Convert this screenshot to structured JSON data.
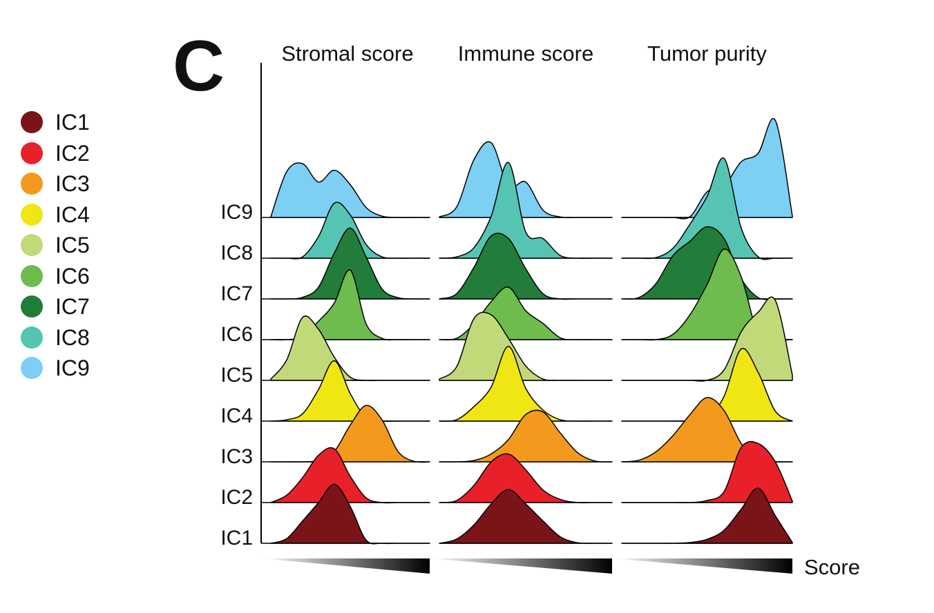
{
  "panel_label": "C",
  "chart_data": {
    "type": "area",
    "subtype": "ridgeline-density",
    "panels": [
      "Stromal score",
      "Immune score",
      "Tumor purity"
    ],
    "x_axis_label": "Score",
    "x_axis": "unlabeled gradient (low to high)",
    "y_categories": [
      "IC1",
      "IC2",
      "IC3",
      "IC4",
      "IC5",
      "IC6",
      "IC7",
      "IC8",
      "IC9"
    ],
    "x_grid": [
      0,
      0.1,
      0.2,
      0.3,
      0.4,
      0.5,
      0.6,
      0.7,
      0.8,
      0.9,
      1.0
    ],
    "legend": {
      "placement": "left"
    },
    "series": [
      {
        "name": "IC1",
        "color": "#7b1418",
        "densities": [
          [
            0.0,
            0.18,
            0.85,
            1.55,
            2.25,
            1.4,
            0.12,
            0.0,
            0.0,
            0.0,
            0.0
          ],
          [
            0.0,
            0.16,
            0.7,
            1.5,
            2.05,
            1.5,
            0.85,
            0.25,
            0.02,
            0.0,
            0.0
          ],
          [
            0.0,
            0.0,
            0.0,
            0.0,
            0.03,
            0.15,
            0.5,
            1.3,
            2.1,
            1.05,
            0.03
          ]
        ]
      },
      {
        "name": "IC2",
        "color": "#e8202a",
        "densities": [
          [
            0.0,
            0.28,
            0.95,
            1.8,
            2.05,
            1.0,
            0.18,
            0.0,
            0.0,
            0.0,
            0.0
          ],
          [
            0.0,
            0.08,
            0.65,
            1.55,
            1.85,
            1.25,
            0.48,
            0.12,
            0.0,
            0.0,
            0.0
          ],
          [
            0.0,
            0.0,
            0.0,
            0.0,
            0.0,
            0.08,
            0.42,
            2.1,
            2.25,
            1.55,
            0.05
          ]
        ]
      },
      {
        "name": "IC3",
        "color": "#f39a1e",
        "densities": [
          [
            0.0,
            0.0,
            0.0,
            0.05,
            0.4,
            1.4,
            2.15,
            1.6,
            0.4,
            0.02,
            0.0
          ],
          [
            0.0,
            0.0,
            0.05,
            0.3,
            0.85,
            1.8,
            1.9,
            1.1,
            0.35,
            0.03,
            0.0
          ],
          [
            0.0,
            0.06,
            0.38,
            1.0,
            1.8,
            2.45,
            1.95,
            0.7,
            0.05,
            0.0,
            0.0
          ]
        ]
      },
      {
        "name": "IC4",
        "color": "#f0e614",
        "densities": [
          [
            0.0,
            0.05,
            0.28,
            1.2,
            2.3,
            1.05,
            0.12,
            0.0,
            0.0,
            0.0,
            0.0
          ],
          [
            0.0,
            0.05,
            0.55,
            1.3,
            2.85,
            1.25,
            0.42,
            0.05,
            0.0,
            0.0,
            0.0
          ],
          [
            0.0,
            0.0,
            0.0,
            0.0,
            0.0,
            0.1,
            0.95,
            2.75,
            1.85,
            0.38,
            0.0
          ]
        ]
      },
      {
        "name": "IC5",
        "color": "#c2d97a",
        "densities": [
          [
            0.05,
            0.78,
            2.4,
            1.95,
            0.88,
            0.12,
            0.0,
            0.0,
            0.0,
            0.0,
            0.0
          ],
          [
            0.05,
            0.52,
            2.35,
            2.5,
            1.6,
            0.55,
            0.05,
            0.0,
            0.0,
            0.0,
            0.0
          ],
          [
            0.0,
            0.0,
            0.0,
            0.0,
            0.0,
            0.0,
            0.4,
            1.85,
            2.6,
            3.05,
            0.2
          ]
        ]
      },
      {
        "name": "IC6",
        "color": "#6ebb4e",
        "densities": [
          [
            0.0,
            0.0,
            0.12,
            0.7,
            1.4,
            2.65,
            0.6,
            0.05,
            0.0,
            0.0,
            0.0
          ],
          [
            0.0,
            0.05,
            0.6,
            1.45,
            2.0,
            1.1,
            0.62,
            0.07,
            0.0,
            0.0,
            0.0
          ],
          [
            0.0,
            0.0,
            0.0,
            0.2,
            0.95,
            2.1,
            3.45,
            2.4,
            0.2,
            0.0,
            0.0
          ]
        ]
      },
      {
        "name": "IC7",
        "color": "#237d3a",
        "densities": [
          [
            0.0,
            0.0,
            0.06,
            0.45,
            1.75,
            2.7,
            1.6,
            0.38,
            0.05,
            0.0,
            0.0
          ],
          [
            0.0,
            0.2,
            1.2,
            2.4,
            2.3,
            1.15,
            0.2,
            0.0,
            0.0,
            0.0,
            0.0
          ],
          [
            0.0,
            0.05,
            0.58,
            1.65,
            2.2,
            2.75,
            2.3,
            0.78,
            0.05,
            0.0,
            0.0
          ]
        ]
      },
      {
        "name": "IC8",
        "color": "#55c4b2",
        "densities": [
          [
            0.0,
            0.0,
            0.05,
            0.82,
            2.1,
            1.65,
            0.52,
            0.05,
            0.0,
            0.0,
            0.0
          ],
          [
            0.0,
            0.05,
            0.4,
            1.6,
            3.65,
            1.0,
            0.75,
            0.1,
            0.0,
            0.0,
            0.0
          ],
          [
            0.0,
            0.0,
            0.02,
            0.38,
            1.3,
            2.35,
            3.8,
            1.15,
            0.05,
            0.0,
            0.0
          ]
        ]
      },
      {
        "name": "IC9",
        "color": "#7dcff4",
        "densities": [
          [
            0.02,
            1.75,
            2.05,
            1.35,
            1.8,
            1.25,
            0.38,
            0.05,
            0.0,
            0.0,
            0.0
          ],
          [
            0.02,
            0.4,
            2.2,
            2.85,
            1.2,
            1.35,
            0.28,
            0.02,
            0.0,
            0.0,
            0.0
          ],
          [
            0.0,
            0.0,
            0.0,
            0.0,
            0.03,
            0.98,
            1.2,
            2.12,
            2.45,
            3.7,
            0.05
          ]
        ]
      }
    ]
  }
}
